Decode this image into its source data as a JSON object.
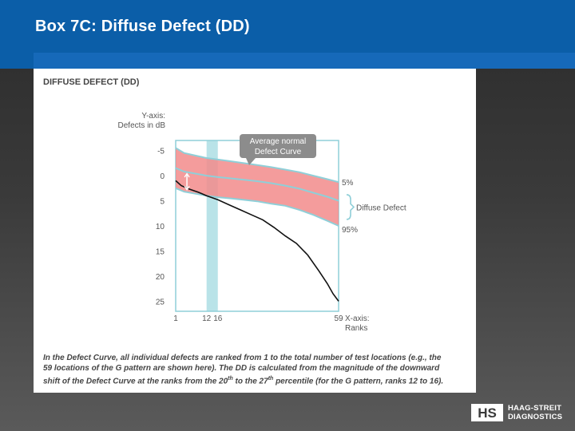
{
  "slide": {
    "title": "Box 7C: Diffuse Defect (DD)",
    "logo_line1": "HAAG-STREIT",
    "logo_line2": "DIAGNOSTICS",
    "logo_mark": "HS"
  },
  "chart_data": {
    "type": "line",
    "title": "DIFFUSE DEFECT (DD)",
    "ylabel_line1": "Y-axis:",
    "ylabel_line2": "Defects in dB",
    "xlabel_line1": "X-axis:",
    "xlabel_line2": "Ranks",
    "ylim": [
      -7,
      27
    ],
    "xlim": [
      1,
      59
    ],
    "y_ticks": [
      -5,
      0,
      5,
      10,
      15,
      20,
      25
    ],
    "x_ticks": [
      1,
      12,
      16,
      59
    ],
    "highlight_ranks": [
      12,
      16
    ],
    "callout_line1": "Average normal",
    "callout_line2": "Defect Curve",
    "label_5pct": "5%",
    "label_95pct": "95%",
    "label_diffuse": "Diffuse Defect",
    "colors": {
      "band": "#f28b8b",
      "normal_curve": "#8fcfd8",
      "highlight": "#b9e3e8",
      "frame": "#8fcfd8",
      "patient_curve": "#111111"
    },
    "series": [
      {
        "x": [
          1,
          4,
          8,
          12,
          16,
          20,
          25,
          30,
          35,
          40,
          45,
          50,
          55,
          59
        ],
        "values": [
          -5.5,
          -4.5,
          -4.0,
          -3.5,
          -3.2,
          -2.9,
          -2.5,
          -2.1,
          -1.7,
          -1.2,
          -0.7,
          0.0,
          0.7,
          1.3
        ]
      },
      {
        "x": [
          1,
          4,
          8,
          12,
          16,
          20,
          25,
          30,
          35,
          40,
          45,
          50,
          55,
          59
        ],
        "values": [
          -1.5,
          -0.8,
          -0.4,
          0.0,
          0.3,
          0.5,
          0.8,
          1.1,
          1.5,
          2.0,
          2.6,
          3.4,
          4.2,
          5.0
        ]
      },
      {
        "x": [
          1,
          4,
          8,
          12,
          16,
          20,
          25,
          30,
          35,
          40,
          45,
          50,
          55,
          59
        ],
        "values": [
          2.5,
          3.2,
          3.6,
          4.0,
          4.3,
          4.5,
          4.8,
          5.1,
          5.6,
          6.0,
          6.8,
          7.8,
          9.0,
          10.0
        ]
      },
      {
        "x": [
          1,
          3,
          6,
          9,
          12,
          16,
          20,
          24,
          28,
          32,
          36,
          40,
          44,
          48,
          52,
          55,
          57,
          59
        ],
        "values": [
          1.0,
          2.0,
          2.7,
          3.3,
          4.0,
          4.8,
          5.8,
          6.8,
          7.8,
          8.8,
          10.3,
          12.0,
          13.5,
          15.8,
          19.0,
          21.5,
          23.5,
          25.0
        ]
      }
    ]
  },
  "caption": {
    "line1": "In the Defect Curve, all individual defects are ranked from 1 to the total number of test locations (e.g., the",
    "line2": "59 locations of the G pattern are shown here). The DD is calculated from the magnitude of the downward",
    "line3_a": "shift of the Defect Curve at the ranks from the 20",
    "sup1": "th",
    "line3_b": " to the 27",
    "sup2": "th",
    "line3_c": " percentile (for the G pattern, ranks 12 to 16)."
  }
}
